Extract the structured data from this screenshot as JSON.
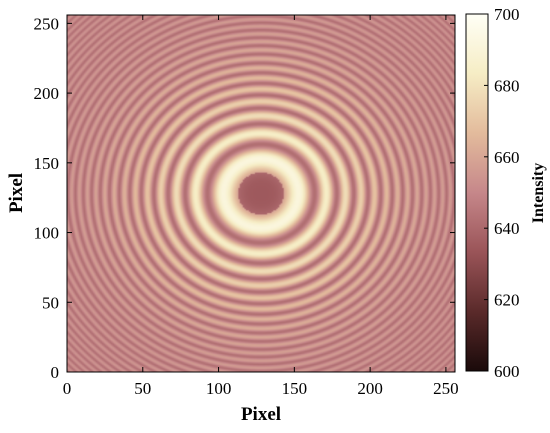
{
  "chart_data": {
    "type": "heatmap",
    "title": "",
    "xlabel": "Pixel",
    "ylabel": "Pixel",
    "colorbar_label": "Intensity",
    "xlim": [
      0,
      256
    ],
    "ylim": [
      0,
      256
    ],
    "x_ticks": [
      0,
      50,
      100,
      150,
      200,
      250
    ],
    "y_ticks": [
      0,
      50,
      100,
      150,
      200,
      250
    ],
    "color_range": [
      600,
      700
    ],
    "colorbar_ticks": [
      600,
      620,
      640,
      660,
      680,
      700
    ],
    "pattern": {
      "description_kind": "concentric rings (interference fringes)",
      "center": [
        128,
        128
      ],
      "center_intensity": 632,
      "first_bright_ring_radius": 25,
      "base_intensity": 642,
      "peak_intensity": 696,
      "edge_intensity": 652,
      "fringe_count": 16
    },
    "colormap": [
      "#1a0a0a",
      "#5a2a2a",
      "#9a5458",
      "#c6878a",
      "#e3bb9c",
      "#f6edc5",
      "#fffff6"
    ]
  }
}
